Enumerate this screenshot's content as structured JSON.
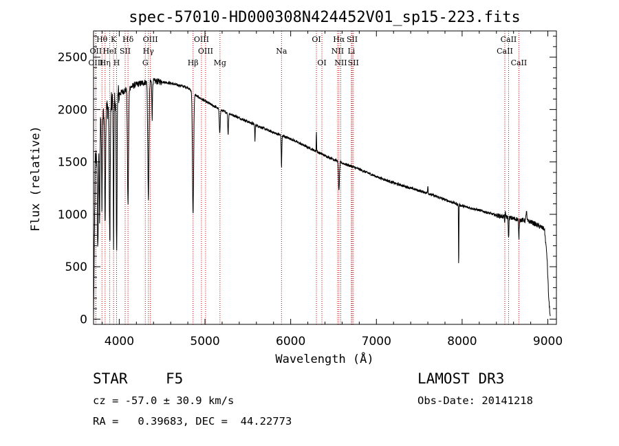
{
  "chart_data": {
    "type": "line",
    "title": "spec-57010-HD000308N424452V01_sp15-223.fits",
    "xlabel": "Wavelength (Å)",
    "ylabel": "Flux (relative)",
    "xlim": [
      3700,
      9100
    ],
    "ylim": [
      -50,
      2750
    ],
    "x_ticks": [
      4000,
      5000,
      6000,
      7000,
      8000,
      9000
    ],
    "y_ticks": [
      0,
      500,
      1000,
      1500,
      2000,
      2500
    ],
    "grid": false,
    "continuum": {
      "x": [
        3700,
        3720,
        3800,
        3900,
        4000,
        4100,
        4200,
        4300,
        4400,
        4500,
        4600,
        4700,
        4800,
        4900,
        5000,
        5200,
        5400,
        5600,
        5800,
        6000,
        6200,
        6400,
        6600,
        6800,
        7000,
        7200,
        7400,
        7600,
        7800,
        8000,
        8200,
        8400,
        8600,
        8800,
        8960,
        8990,
        9010,
        9030
      ],
      "y": [
        0,
        1500,
        1950,
        2050,
        2150,
        2200,
        2240,
        2260,
        2270,
        2265,
        2250,
        2230,
        2210,
        2130,
        2080,
        1990,
        1920,
        1850,
        1780,
        1720,
        1640,
        1560,
        1490,
        1430,
        1360,
        1300,
        1250,
        1200,
        1140,
        1080,
        1040,
        990,
        960,
        930,
        860,
        600,
        200,
        0
      ]
    },
    "absorption": [
      {
        "x": 3750,
        "depth": 1000,
        "width": 8
      },
      {
        "x": 3770,
        "depth": 800,
        "width": 6
      },
      {
        "x": 3798,
        "depth": 900,
        "width": 6
      },
      {
        "x": 3835,
        "depth": 1000,
        "width": 7
      },
      {
        "x": 3889,
        "depth": 1300,
        "width": 8
      },
      {
        "x": 3934,
        "depth": 1400,
        "width": 5
      },
      {
        "x": 3969,
        "depth": 1500,
        "width": 7
      },
      {
        "x": 4102,
        "depth": 1100,
        "width": 9
      },
      {
        "x": 4340,
        "depth": 1100,
        "width": 10
      },
      {
        "x": 4384,
        "depth": 350,
        "width": 5
      },
      {
        "x": 4861,
        "depth": 1150,
        "width": 10
      },
      {
        "x": 5172,
        "depth": 220,
        "width": 8
      },
      {
        "x": 5270,
        "depth": 200,
        "width": 6
      },
      {
        "x": 5583,
        "depth": 150,
        "width": 4
      },
      {
        "x": 5893,
        "depth": 300,
        "width": 5
      },
      {
        "x": 6563,
        "depth": 280,
        "width": 8
      },
      {
        "x": 7960,
        "depth": 600,
        "width": 3
      },
      {
        "x": 8498,
        "depth": 120,
        "width": 5
      },
      {
        "x": 8542,
        "depth": 200,
        "width": 5
      },
      {
        "x": 8662,
        "depth": 180,
        "width": 5
      }
    ],
    "emission": [
      {
        "x": 6300,
        "height": 200,
        "width": 3
      },
      {
        "x": 7600,
        "height": 80,
        "width": 4
      },
      {
        "x": 8500,
        "height": 80,
        "width": 8
      },
      {
        "x": 8750,
        "height": 100,
        "width": 6
      }
    ],
    "lines": [
      {
        "label": "Hθ",
        "x": 3798,
        "row": 1
      },
      {
        "label": "K",
        "x": 3934,
        "row": 1
      },
      {
        "label": "Hδ",
        "x": 4102,
        "row": 1
      },
      {
        "label": "OIII",
        "x": 4363,
        "row": 1
      },
      {
        "label": "OIII",
        "x": 4959,
        "row": 1
      },
      {
        "label": "OI",
        "x": 6300,
        "row": 1
      },
      {
        "label": "Hα",
        "x": 6563,
        "row": 1
      },
      {
        "label": "SII",
        "x": 6717,
        "row": 1
      },
      {
        "label": "CaII",
        "x": 8542,
        "row": 1
      },
      {
        "label": "OII",
        "x": 3727,
        "row": 2
      },
      {
        "label": "HeI",
        "x": 3889,
        "row": 2
      },
      {
        "label": "SII",
        "x": 4069,
        "row": 2
      },
      {
        "label": "Hγ",
        "x": 4340,
        "row": 2
      },
      {
        "label": "OIII",
        "x": 5007,
        "row": 2
      },
      {
        "label": "Na",
        "x": 5893,
        "row": 2
      },
      {
        "label": "NII",
        "x": 6548,
        "row": 2
      },
      {
        "label": "Li",
        "x": 6708,
        "row": 2
      },
      {
        "label": "CaII",
        "x": 8498,
        "row": 2
      },
      {
        "label": "OIII",
        "x": 3727,
        "row": 3
      },
      {
        "label": "Hη",
        "x": 3835,
        "row": 3
      },
      {
        "label": "H",
        "x": 3969,
        "row": 3
      },
      {
        "label": "G",
        "x": 4304,
        "row": 3
      },
      {
        "label": "Hβ",
        "x": 4861,
        "row": 3
      },
      {
        "label": "Mg",
        "x": 5175,
        "row": 3
      },
      {
        "label": "OI",
        "x": 6364,
        "row": 3
      },
      {
        "label": "NII",
        "x": 6584,
        "row": 3
      },
      {
        "label": "SII",
        "x": 6731,
        "row": 3
      },
      {
        "label": "CaII",
        "x": 8662,
        "row": 3
      }
    ]
  },
  "info": {
    "object_class": "STAR",
    "subclass": "F5",
    "survey": "LAMOST DR3",
    "cz": "cz = -57.0 ± 30.9 km/s",
    "obs_date": "Obs-Date: 20141218",
    "radec": "RA =   0.39683, DEC =  44.22773"
  },
  "colors": {
    "spectrum": "#000000",
    "line_markers": "#c00000",
    "axes": "#000000"
  }
}
